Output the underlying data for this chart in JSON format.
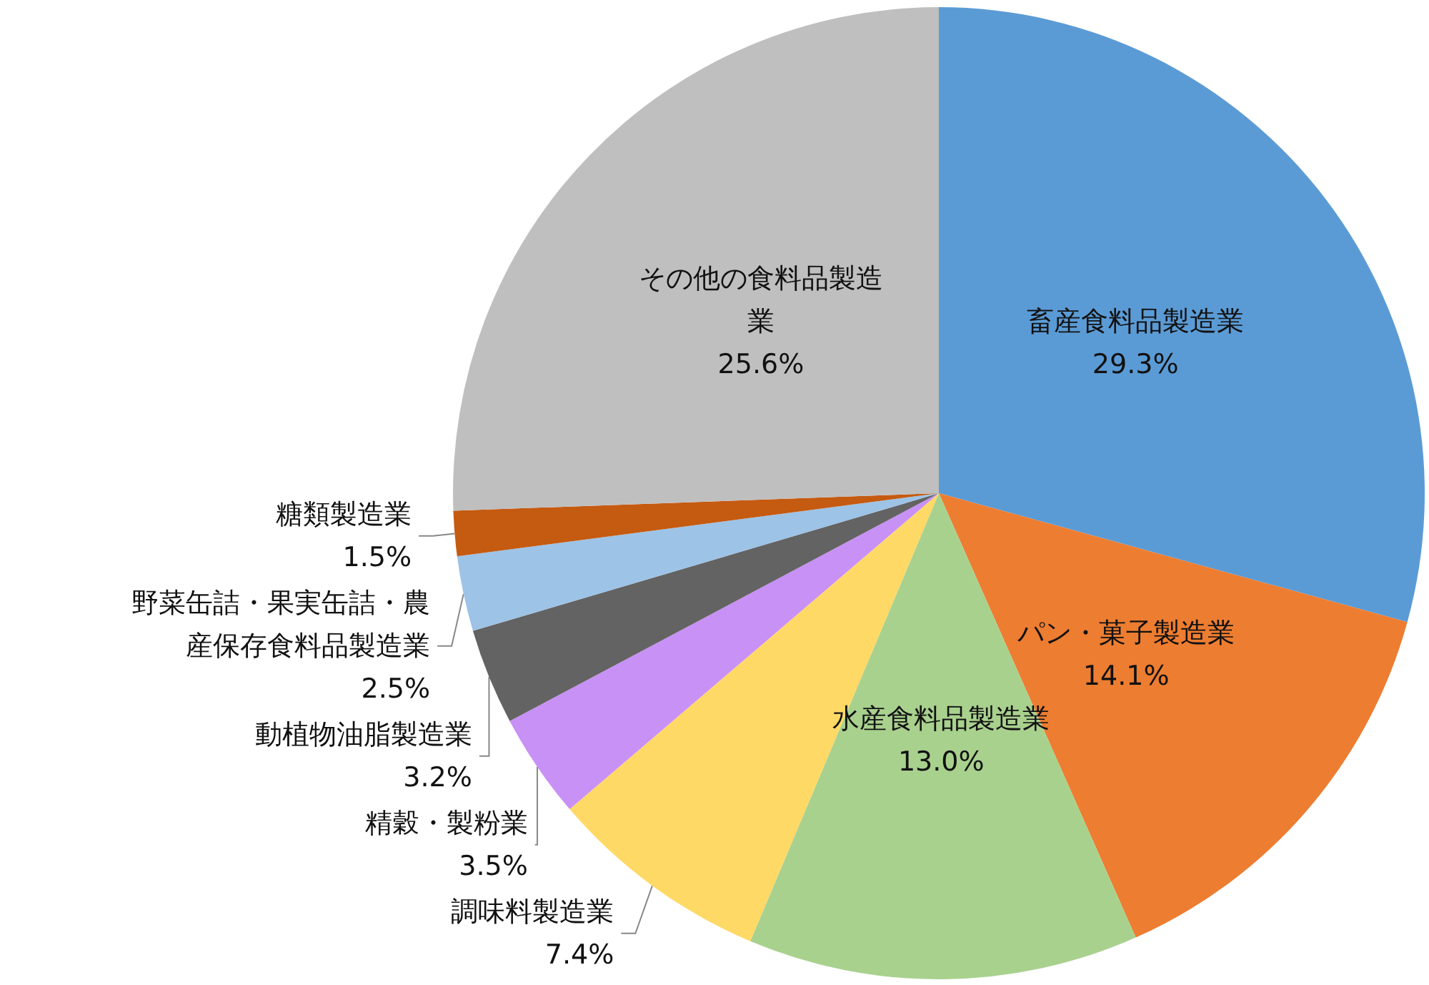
{
  "chart_data": {
    "type": "pie",
    "categories": [
      "畜産食料品製造業",
      "パン・菓子製造業",
      "水産食料品製造業",
      "調味料製造業",
      "精穀・製粉業",
      "動植物油脂製造業",
      "野菜缶詰・果実缶詰・農産保存食料品製造業",
      "糖類製造業",
      "その他の食料品製造業"
    ],
    "values": [
      29.3,
      14.1,
      13.0,
      7.4,
      3.5,
      3.2,
      2.5,
      1.5,
      25.6
    ],
    "value_labels": [
      "29.3%",
      "14.1%",
      "13.0%",
      "7.4%",
      "3.5%",
      "3.2%",
      "2.5%",
      "1.5%",
      "25.6%"
    ],
    "colors": [
      "#5b9bd5",
      "#ed7d31",
      "#a9d18e",
      "#ffd966",
      "#c891f5",
      "#636363",
      "#9dc3e6",
      "#c55a11",
      "#bfbfbf"
    ]
  }
}
